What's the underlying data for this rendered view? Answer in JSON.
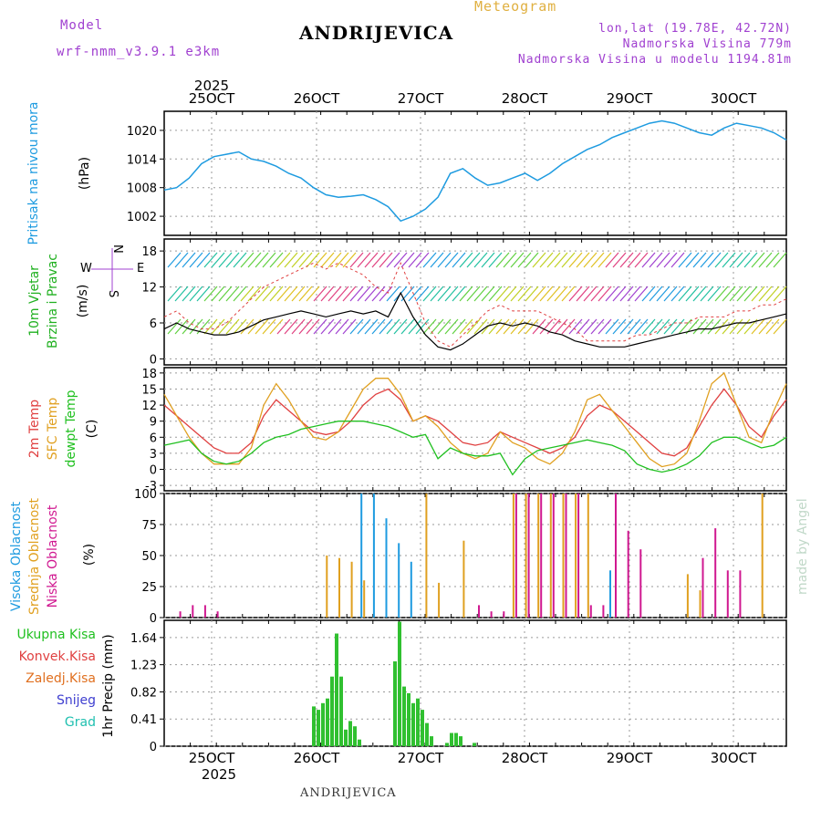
{
  "header": {
    "model_label": "Model",
    "model_name": "wrf-nmm_v3.9.1 e3km",
    "station": "ANDRIJEVICA",
    "title": "Meteogram",
    "lonlat": "lon,lat (19.78E, 42.72N)",
    "elevation": "Nadmorska Visina 779m",
    "model_elevation": "Nadmorska Visina u modelu 1194.81m",
    "footer_station": "ANDRIJEVICA",
    "watermark": "made by Angel"
  },
  "colors": {
    "pressure": "#1e9be0",
    "wind_label": "#20b020",
    "temp2m": "#e04040",
    "sfc": "#e0a020",
    "dew": "#20c020",
    "high_cloud": "#1e9be0",
    "mid_cloud": "#e0a020",
    "low_cloud": "#d01890",
    "precip": "#30c030"
  },
  "chart_data": [
    {
      "type": "line",
      "title": "Pritisak na nivou mora",
      "ylabel": "(hPa)",
      "ylim": [
        998,
        1024
      ],
      "yticks": [
        "1020",
        "1014",
        "1008",
        "1002"
      ],
      "x_day_labels": [
        "25OCT",
        "26OCT",
        "27OCT",
        "28OCT",
        "29OCT",
        "30OCT"
      ],
      "year_label": "2025",
      "series": [
        {
          "name": "pressure",
          "values": [
            1007.5,
            1008,
            1010,
            1013,
            1014.5,
            1015,
            1015.5,
            1014,
            1013.5,
            1012.5,
            1011,
            1010,
            1008,
            1006.5,
            1006,
            1006.2,
            1006.5,
            1005.5,
            1004,
            1001,
            1002,
            1003.5,
            1006,
            1011,
            1012,
            1010,
            1008.5,
            1009,
            1010,
            1011,
            1009.5,
            1011,
            1013,
            1014.5,
            1016,
            1017,
            1018.5,
            1019.5,
            1020.5,
            1021.5,
            1022,
            1021.5,
            1020.5,
            1019.5,
            1019,
            1020.5,
            1021.5,
            1021,
            1020.5,
            1019.5,
            1018
          ]
        }
      ]
    },
    {
      "type": "line",
      "title": "10m Vjetar Brzina i Pravac",
      "ylabel": "(m/s)",
      "ylim": [
        -1,
        20
      ],
      "yticks": [
        "18",
        "12",
        "6",
        "0"
      ],
      "direction_legend": {
        "north": "N",
        "west": "W",
        "east": "E",
        "south": "S"
      },
      "series": [
        {
          "name": "wind speed",
          "values": [
            5,
            6,
            5,
            4.5,
            4,
            4,
            4.5,
            5.5,
            6.5,
            7,
            7.5,
            8,
            7.5,
            7,
            7.5,
            8,
            7.5,
            8,
            7,
            11,
            7,
            4,
            2,
            1.5,
            2.5,
            4,
            5.5,
            6,
            5.5,
            6,
            5.5,
            4.5,
            4,
            3,
            2.5,
            2,
            2,
            2,
            2.5,
            3,
            3.5,
            4,
            4.5,
            5,
            5,
            5.5,
            6,
            6,
            6.5,
            7,
            7.5
          ]
        },
        {
          "name": "wind gust",
          "values": [
            7,
            8,
            6,
            5,
            5,
            6,
            8,
            10,
            12,
            13,
            14,
            15,
            16,
            15,
            16,
            15,
            14,
            12,
            11,
            16,
            11,
            6,
            3,
            2,
            4,
            6,
            8,
            9,
            8,
            8,
            8,
            7,
            6,
            5,
            3,
            3,
            3,
            3,
            4,
            4,
            5,
            6,
            6,
            7,
            7,
            7,
            8,
            8,
            9,
            9,
            10
          ]
        }
      ]
    },
    {
      "type": "line",
      "title": "2m Temp / SFC Temp / dewpt Temp",
      "ylabel": "(C)",
      "ylim": [
        -4,
        19
      ],
      "yticks": [
        "18",
        "15",
        "12",
        "9",
        "6",
        "3",
        "0",
        "-3"
      ],
      "series": [
        {
          "name": "2m Temp",
          "values": [
            12,
            10,
            8,
            6,
            4,
            3,
            3,
            5,
            10,
            13,
            11,
            9,
            7,
            6.5,
            7,
            9,
            12,
            14,
            15,
            13,
            9,
            10,
            9,
            7,
            5,
            4.5,
            5,
            7,
            6,
            5,
            4,
            3,
            4,
            6,
            10,
            12,
            11,
            9,
            7,
            5,
            3,
            2.5,
            4,
            8,
            12,
            15,
            12,
            8,
            6,
            10,
            13
          ]
        },
        {
          "name": "SFC Temp",
          "values": [
            14,
            10,
            6,
            3,
            1,
            1,
            1,
            4,
            12,
            16,
            13,
            9,
            6,
            5.5,
            7,
            11,
            15,
            17,
            17,
            14,
            9,
            10,
            8,
            5,
            3,
            2,
            3,
            7,
            5,
            4,
            2,
            1,
            3,
            7,
            13,
            14,
            11,
            8,
            5,
            2,
            0.5,
            1,
            3,
            9,
            16,
            18,
            12,
            6,
            5,
            11,
            16
          ]
        },
        {
          "name": "dewpt Temp",
          "values": [
            4.5,
            5,
            5.5,
            3,
            1.5,
            1,
            1.5,
            3,
            5,
            6,
            6.5,
            7.5,
            8,
            8.5,
            9,
            9,
            9,
            8.5,
            8,
            7,
            6,
            6.5,
            2,
            4,
            3,
            2.5,
            2.5,
            3,
            -1,
            2,
            3.5,
            4,
            4.5,
            5,
            5.5,
            5,
            4.5,
            3.5,
            1,
            0,
            -0.5,
            0,
            1,
            2.5,
            5,
            6,
            6,
            5,
            4,
            4.5,
            6
          ]
        }
      ]
    },
    {
      "type": "bar",
      "title": "Visoka Oblacnost / Srednja Oblacnost / Niska Oblacnost",
      "ylabel": "(%)",
      "ylim": [
        0,
        100
      ],
      "yticks": [
        "100",
        "75",
        "50",
        "25",
        "0"
      ],
      "series": [
        {
          "name": "Visoka Oblacnost",
          "values": [
            0,
            0,
            0,
            0,
            0,
            0,
            0,
            0,
            0,
            0,
            0,
            0,
            0,
            0,
            0,
            0,
            100,
            100,
            80,
            60,
            45,
            0,
            0,
            0,
            0,
            0,
            0,
            0,
            0,
            0,
            0,
            0,
            0,
            0,
            0,
            0,
            38,
            0,
            0,
            0,
            0,
            0,
            0,
            0,
            0,
            0,
            0,
            0,
            0,
            0,
            0
          ]
        },
        {
          "name": "Srednja Oblacnost",
          "values": [
            0,
            0,
            0,
            0,
            0,
            0,
            0,
            0,
            0,
            0,
            0,
            0,
            0,
            50,
            48,
            45,
            30,
            0,
            0,
            0,
            0,
            100,
            28,
            0,
            62,
            0,
            0,
            0,
            100,
            100,
            100,
            100,
            100,
            100,
            100,
            0,
            0,
            0,
            0,
            0,
            0,
            0,
            35,
            22,
            0,
            0,
            0,
            0,
            100,
            0,
            0
          ]
        },
        {
          "name": "Niska Oblacnost",
          "values": [
            0,
            5,
            10,
            10,
            5,
            0,
            0,
            0,
            0,
            0,
            0,
            0,
            0,
            0,
            0,
            0,
            0,
            0,
            0,
            0,
            0,
            0,
            0,
            0,
            0,
            10,
            5,
            5,
            100,
            100,
            100,
            100,
            100,
            100,
            10,
            10,
            100,
            70,
            55,
            0,
            0,
            0,
            0,
            48,
            72,
            38,
            38,
            0,
            0,
            0,
            0
          ]
        }
      ]
    },
    {
      "type": "bar",
      "title": "1hr Precip",
      "ylabel": "1hr Precip (mm)",
      "ylim": [
        0,
        1.9
      ],
      "yticks": [
        "1.64",
        "1.23",
        "0.82",
        "0.41",
        "0"
      ],
      "legend": [
        "Ukupna Kisa",
        "Konvek.Kisa",
        "Zaledj.Kisa",
        "Snijeg",
        "Grad"
      ],
      "series": [
        {
          "name": "Ukupna Kisa",
          "values": [
            0.6,
            0.55,
            0.65,
            0.72,
            1.05,
            1.7,
            1.05,
            0.25,
            0.38,
            0.3,
            0.1,
            1.28,
            1.88,
            0.9,
            0.8,
            0.65,
            0.72,
            0.55,
            0.35,
            0.15,
            0.05,
            0.2,
            0.2,
            0.15,
            0.05
          ]
        }
      ]
    }
  ]
}
